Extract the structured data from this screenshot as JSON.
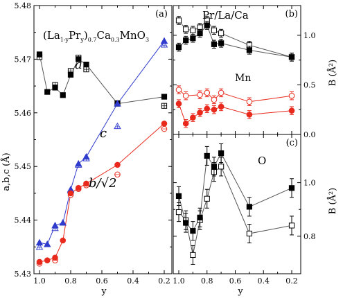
{
  "chart_data": [
    {
      "id": "a",
      "type": "scatter",
      "panel_label": "(a)",
      "title_parts": {
        "a": "(La",
        "b": "1-y",
        "c": "Pr",
        "d": "y",
        "e": ")",
        "f": "0.7",
        "g": "Ca",
        "h": "0.3",
        "i": "MnO",
        "j": "3"
      },
      "xlabel": "y",
      "ylabel": "a,b,c (Å)",
      "xlim": [
        1.0,
        0.2
      ],
      "ylim": [
        5.43,
        5.48
      ],
      "xticks": [
        1.0,
        0.8,
        0.6,
        0.4,
        0.2
      ],
      "xtick_labels": [
        "1.0",
        "0.8",
        "0.6",
        "0.4",
        "0.2"
      ],
      "yticks": [
        5.43,
        5.44,
        5.45,
        5.46,
        5.47,
        5.48
      ],
      "ytick_labels": [
        "5.43",
        "5.44",
        "5.45",
        "5.46",
        "5.47",
        "5.48"
      ],
      "series": [
        {
          "key": "a",
          "label": "a",
          "color": "#000000",
          "x": [
            1.0,
            0.95,
            0.9,
            0.85,
            0.8,
            0.75,
            0.7,
            0.5,
            0.2
          ],
          "y_filled": [
            5.4709,
            5.4639,
            5.4647,
            5.4633,
            5.4671,
            5.47,
            5.469,
            5.4617,
            5.463
          ],
          "y_open": [
            5.4704,
            null,
            5.4652,
            null,
            5.4678,
            5.4703,
            5.4681,
            5.4618,
            5.4613
          ]
        },
        {
          "key": "c",
          "label": "c",
          "color": "#2f3bcc",
          "x": [
            1.0,
            0.95,
            0.9,
            0.85,
            0.8,
            0.75,
            0.7,
            0.5,
            0.2
          ],
          "y_filled": [
            5.4358,
            5.4355,
            5.439,
            5.4395,
            5.4457,
            5.4505,
            5.4518,
            5.4617,
            5.4734
          ],
          "y_open": [
            5.435,
            null,
            5.4385,
            null,
            5.4455,
            5.4503,
            5.4515,
            5.4575,
            5.4727
          ]
        },
        {
          "key": "b",
          "label": "b/√2",
          "color": "#e8291c",
          "x": [
            1.0,
            0.95,
            0.9,
            0.85,
            0.8,
            0.75,
            0.7,
            0.5,
            0.2
          ],
          "y_filled": [
            5.4322,
            5.4325,
            5.433,
            5.4362,
            5.445,
            5.446,
            5.4468,
            5.4503,
            5.458
          ],
          "y_open": [
            5.4319,
            null,
            5.4325,
            null,
            5.4447,
            5.4458,
            5.4465,
            5.4485,
            5.457
          ]
        }
      ]
    },
    {
      "id": "b",
      "type": "scatter",
      "panel_label": "(b)",
      "ylabel": "B (Å²)",
      "xlim": [
        1.0,
        0.2
      ],
      "ylim": [
        0.0,
        1.3
      ],
      "yticks": [
        0.0,
        0.5,
        1.0
      ],
      "ytick_labels": [
        "0.0",
        "0.5",
        "1.0"
      ],
      "series": [
        {
          "key": "prlaca",
          "label": "Pr/La/Ca",
          "color": "#000000",
          "x": [
            1.0,
            0.95,
            0.9,
            0.85,
            0.8,
            0.75,
            0.7,
            0.5,
            0.2
          ],
          "y_filled": [
            0.88,
            0.95,
            0.97,
            1.02,
            1.1,
            0.91,
            0.92,
            0.85,
            0.78
          ],
          "y_open": [
            1.15,
            1.06,
            1.05,
            1.08,
            1.15,
            1.05,
            1.02,
            0.9,
            0.78
          ],
          "err": 0.04
        },
        {
          "key": "mn",
          "label": "Mn",
          "color": "#e8291c",
          "x": [
            1.0,
            0.95,
            0.9,
            0.85,
            0.8,
            0.75,
            0.7,
            0.5,
            0.2
          ],
          "y_filled": [
            0.31,
            0.11,
            0.17,
            0.22,
            0.26,
            0.25,
            0.28,
            0.2,
            0.24
          ],
          "y_open": [
            0.45,
            0.39,
            null,
            0.4,
            0.42,
            0.35,
            0.42,
            0.33,
            0.39
          ],
          "err": 0.04
        }
      ]
    },
    {
      "id": "c",
      "type": "scatter",
      "panel_label": "(c)",
      "xlabel": "y",
      "ylabel": "B (Å²)",
      "xlim": [
        1.0,
        0.2
      ],
      "ylim": [
        0.66,
        1.18
      ],
      "xticks": [
        1.0,
        0.8,
        0.6,
        0.4,
        0.2
      ],
      "xtick_labels": [
        "1.0",
        "0.8",
        "0.6",
        "0.4",
        "0.2"
      ],
      "yticks": [
        0.8,
        1.0
      ],
      "ytick_labels": [
        "0.8",
        "1.0"
      ],
      "series": [
        {
          "key": "o",
          "label": "O",
          "color": "#000000",
          "x": [
            1.0,
            0.95,
            0.9,
            0.85,
            0.8,
            0.75,
            0.7,
            0.5,
            0.2
          ],
          "y_filled": [
            0.95,
            0.85,
            0.82,
            0.87,
            1.1,
            1.06,
            1.11,
            0.91,
            0.98
          ],
          "y_open": [
            0.89,
            0.86,
            0.73,
            0.86,
            0.94,
            1.04,
            1.06,
            0.81,
            0.84
          ],
          "err": 0.035
        }
      ]
    }
  ]
}
